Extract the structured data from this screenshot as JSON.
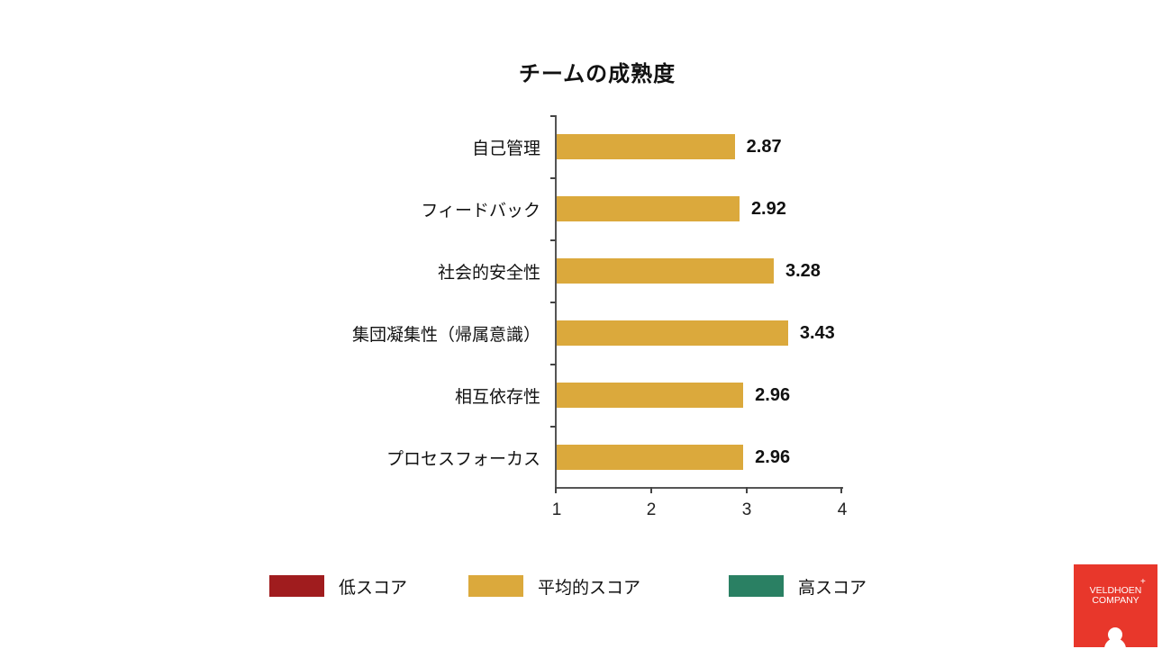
{
  "chart_data": {
    "type": "bar",
    "orientation": "horizontal",
    "title": "チームの成熟度",
    "categories": [
      "自己管理",
      "フィードバック",
      "社会的安全性",
      "集団凝集性（帰属意識）",
      "相互依存性",
      "プロセスフォーカス"
    ],
    "values": [
      2.87,
      2.92,
      3.28,
      3.43,
      2.96,
      2.96
    ],
    "value_labels": [
      "2.87",
      "2.92",
      "3.28",
      "3.43",
      "2.96",
      "2.96"
    ],
    "xlabel": "",
    "ylabel": "",
    "xlim": [
      1,
      4
    ],
    "xticks": [
      "1",
      "2",
      "3",
      "4"
    ],
    "grid": false,
    "bar_color": "#DBA93C",
    "legend_position": "bottom",
    "legend": [
      {
        "label": "低スコア",
        "color": "#A01C1E"
      },
      {
        "label": "平均的スコア",
        "color": "#DBA93C"
      },
      {
        "label": "高スコア",
        "color": "#2A8063"
      }
    ]
  },
  "logo": {
    "line1": "VELDHOEN",
    "line2": "COMPANY",
    "plus": "+",
    "color": "#E8372B"
  }
}
